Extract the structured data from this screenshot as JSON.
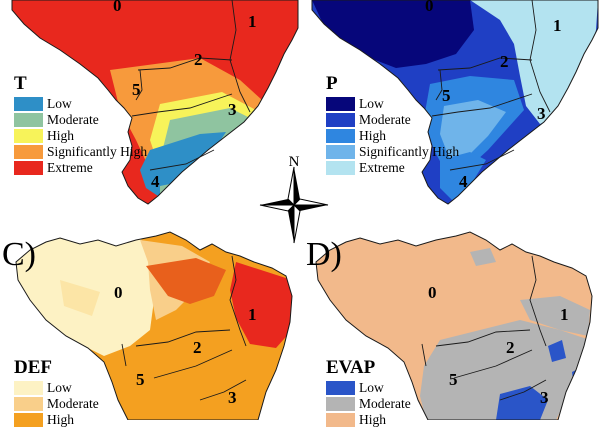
{
  "panels": [
    {
      "id": "A",
      "label": "",
      "variable": "T",
      "classes": [
        {
          "label": "Low",
          "color": "#2e8fc7"
        },
        {
          "label": "Moderate",
          "color": "#8fc4a0"
        },
        {
          "label": "High",
          "color": "#f7f35a"
        },
        {
          "label": "Significantly High",
          "color": "#f79a3c"
        },
        {
          "label": "Extreme",
          "color": "#e8281e"
        }
      ],
      "region_numbers": [
        "0",
        "1",
        "2",
        "3",
        "4",
        "5"
      ]
    },
    {
      "id": "B",
      "label": "",
      "variable": "P",
      "classes": [
        {
          "label": "Low",
          "color": "#06067a"
        },
        {
          "label": "Moderate",
          "color": "#1f3fc4"
        },
        {
          "label": "High",
          "color": "#2f86e0"
        },
        {
          "label": "Significantly High",
          "color": "#6fb4ea"
        },
        {
          "label": "Extreme",
          "color": "#b3e3f0"
        }
      ],
      "region_numbers": [
        "0",
        "1",
        "2",
        "3",
        "4",
        "5"
      ]
    },
    {
      "id": "C",
      "label": "C)",
      "variable": "DEF",
      "classes": [
        {
          "label": "Low",
          "color": "#fdf2c4"
        },
        {
          "label": "Moderate",
          "color": "#f9cf8a"
        },
        {
          "label": "High",
          "color": "#f4a020"
        }
      ],
      "region_numbers": [
        "0",
        "1",
        "2",
        "3",
        "5"
      ]
    },
    {
      "id": "D",
      "label": "D)",
      "variable": "EVAP",
      "classes": [
        {
          "label": "Low",
          "color": "#2a55c8"
        },
        {
          "label": "Moderate",
          "color": "#b4b4b4"
        },
        {
          "label": "High",
          "color": "#f2b98b"
        }
      ],
      "region_numbers": [
        "0",
        "1",
        "2",
        "3",
        "5"
      ]
    }
  ],
  "north_arrow": {
    "label": "N"
  }
}
